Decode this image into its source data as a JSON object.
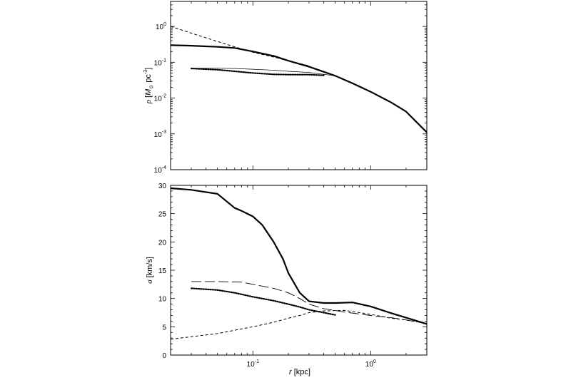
{
  "chart_data": [
    {
      "type": "line",
      "panel": "top",
      "x_scale": "log",
      "y_scale": "log",
      "xlim": [
        0.02,
        3.0
      ],
      "ylim": [
        0.0001,
        5.0
      ],
      "ylabel_parts": {
        "rho": "ρ",
        "open": " [",
        "M": "M",
        "sun": "⊙",
        "unit": " pc",
        "exp": "-3",
        "close": "]"
      },
      "y_ticks": [
        {
          "value": 1,
          "base": "10",
          "exp": "0"
        },
        {
          "value": 0.1,
          "base": "10",
          "exp": "-1"
        },
        {
          "value": 0.01,
          "base": "10",
          "exp": "-2"
        },
        {
          "value": 0.001,
          "base": "10",
          "exp": "-3"
        },
        {
          "value": 0.0001,
          "base": "10",
          "exp": "-4"
        }
      ],
      "series": [
        {
          "style": "solid-thick",
          "x": [
            0.02,
            0.03,
            0.05,
            0.07,
            0.1,
            0.15,
            0.2,
            0.3,
            0.5,
            0.7,
            1.0,
            1.5,
            2.0,
            3.0
          ],
          "y": [
            0.3,
            0.29,
            0.27,
            0.25,
            0.2,
            0.15,
            0.11,
            0.075,
            0.042,
            0.026,
            0.015,
            0.0075,
            0.0042,
            0.0011
          ]
        },
        {
          "style": "dashed",
          "x": [
            0.02,
            0.03,
            0.05,
            0.07,
            0.1,
            0.15,
            0.2,
            0.3
          ],
          "y": [
            1.0,
            0.65,
            0.38,
            0.27,
            0.19,
            0.14,
            0.11,
            0.08
          ]
        },
        {
          "style": "thin",
          "x": [
            0.03,
            0.05,
            0.07,
            0.1,
            0.15,
            0.2,
            0.3,
            0.5
          ],
          "y": [
            0.068,
            0.068,
            0.067,
            0.064,
            0.06,
            0.056,
            0.052,
            0.042
          ]
        },
        {
          "style": "dotted",
          "x": [
            0.03,
            0.05,
            0.07,
            0.1,
            0.15,
            0.2,
            0.3,
            0.4
          ],
          "y": [
            0.067,
            0.062,
            0.056,
            0.05,
            0.046,
            0.045,
            0.045,
            0.043
          ]
        }
      ]
    },
    {
      "type": "line",
      "panel": "bottom",
      "x_scale": "log",
      "y_scale": "linear",
      "xlim": [
        0.02,
        3.0
      ],
      "ylim": [
        0,
        30
      ],
      "xlabel_parts": {
        "r": "r",
        "unit": " [kpc]"
      },
      "ylabel_parts": {
        "sigma": "σ",
        "unit": " [km/s]"
      },
      "x_ticks": [
        {
          "value": 0.1,
          "base": "10",
          "exp": "-1"
        },
        {
          "value": 1,
          "base": "10",
          "exp": "0"
        }
      ],
      "y_ticks": [
        "0",
        "5",
        "10",
        "15",
        "20",
        "25",
        "30"
      ],
      "series": [
        {
          "style": "solid-thick",
          "x": [
            0.02,
            0.03,
            0.05,
            0.07,
            0.08,
            0.1,
            0.12,
            0.15,
            0.18,
            0.2,
            0.25,
            0.3,
            0.4,
            0.5,
            0.7,
            1.0,
            1.5,
            2.0,
            3.0
          ],
          "y": [
            29.5,
            29.2,
            28.5,
            26.0,
            25.5,
            24.5,
            23.0,
            20.0,
            17.0,
            14.5,
            11.0,
            9.5,
            9.2,
            9.2,
            9.3,
            8.6,
            7.4,
            6.6,
            5.5
          ]
        },
        {
          "style": "dashed",
          "x": [
            0.02,
            0.05,
            0.1,
            0.15,
            0.2,
            0.25,
            0.3,
            0.4,
            0.6,
            1.0,
            1.5,
            2.0,
            3.0
          ],
          "y": [
            2.8,
            3.8,
            5.0,
            5.8,
            6.5,
            7.0,
            7.5,
            7.8,
            7.9,
            7.2,
            6.5,
            6.2,
            5.6
          ]
        },
        {
          "style": "long-dash-thin",
          "x": [
            0.03,
            0.05,
            0.08,
            0.1,
            0.15,
            0.2,
            0.25,
            0.3,
            0.4,
            0.6,
            1.0,
            1.5,
            2.0,
            3.0
          ],
          "y": [
            13.0,
            13.0,
            12.9,
            12.5,
            11.8,
            11.0,
            10.0,
            9.0,
            8.2,
            7.6,
            7.0,
            6.6,
            6.2,
            5.6
          ]
        },
        {
          "style": "dotted",
          "x": [
            0.03,
            0.05,
            0.07,
            0.1,
            0.15,
            0.2,
            0.25,
            0.3,
            0.4,
            0.5
          ],
          "y": [
            11.8,
            11.5,
            11.0,
            10.3,
            9.6,
            9.0,
            8.5,
            8.0,
            7.5,
            7.1
          ]
        }
      ]
    }
  ]
}
